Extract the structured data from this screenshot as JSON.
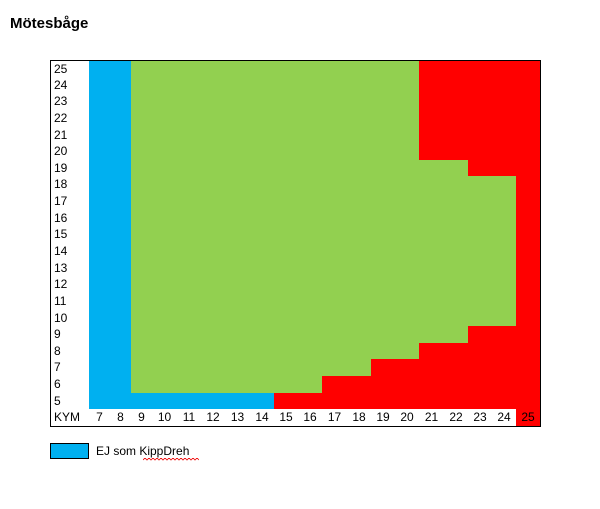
{
  "title": "Mötesbåge",
  "table": {
    "rows": [
      {
        "label": "25",
        "cells": [
          "#00b0f0",
          "#00b0f0",
          "#92d050",
          "#92d050",
          "#92d050",
          "#92d050",
          "#92d050",
          "#92d050",
          "#92d050",
          "#92d050",
          "#92d050",
          "#92d050",
          "#92d050",
          "#92d050",
          "#ff0000",
          "#ff0000",
          "#ff0000",
          "#ff0000",
          "#ff0000"
        ]
      },
      {
        "label": "24",
        "cells": [
          "#00b0f0",
          "#00b0f0",
          "#92d050",
          "#92d050",
          "#92d050",
          "#92d050",
          "#92d050",
          "#92d050",
          "#92d050",
          "#92d050",
          "#92d050",
          "#92d050",
          "#92d050",
          "#92d050",
          "#ff0000",
          "#ff0000",
          "#ff0000",
          "#ff0000",
          "#ff0000"
        ]
      },
      {
        "label": "23",
        "cells": [
          "#00b0f0",
          "#00b0f0",
          "#92d050",
          "#92d050",
          "#92d050",
          "#92d050",
          "#92d050",
          "#92d050",
          "#92d050",
          "#92d050",
          "#92d050",
          "#92d050",
          "#92d050",
          "#92d050",
          "#ff0000",
          "#ff0000",
          "#ff0000",
          "#ff0000",
          "#ff0000"
        ]
      },
      {
        "label": "22",
        "cells": [
          "#00b0f0",
          "#00b0f0",
          "#92d050",
          "#92d050",
          "#92d050",
          "#92d050",
          "#92d050",
          "#92d050",
          "#92d050",
          "#92d050",
          "#92d050",
          "#92d050",
          "#92d050",
          "#92d050",
          "#ff0000",
          "#ff0000",
          "#ff0000",
          "#ff0000",
          "#ff0000"
        ]
      },
      {
        "label": "21",
        "cells": [
          "#00b0f0",
          "#00b0f0",
          "#92d050",
          "#92d050",
          "#92d050",
          "#92d050",
          "#92d050",
          "#92d050",
          "#92d050",
          "#92d050",
          "#92d050",
          "#92d050",
          "#92d050",
          "#92d050",
          "#ff0000",
          "#ff0000",
          "#ff0000",
          "#ff0000",
          "#ff0000"
        ]
      },
      {
        "label": "20",
        "cells": [
          "#00b0f0",
          "#00b0f0",
          "#92d050",
          "#92d050",
          "#92d050",
          "#92d050",
          "#92d050",
          "#92d050",
          "#92d050",
          "#92d050",
          "#92d050",
          "#92d050",
          "#92d050",
          "#92d050",
          "#ff0000",
          "#ff0000",
          "#ff0000",
          "#ff0000",
          "#ff0000"
        ]
      },
      {
        "label": "19",
        "cells": [
          "#00b0f0",
          "#00b0f0",
          "#92d050",
          "#92d050",
          "#92d050",
          "#92d050",
          "#92d050",
          "#92d050",
          "#92d050",
          "#92d050",
          "#92d050",
          "#92d050",
          "#92d050",
          "#92d050",
          "#92d050",
          "#92d050",
          "#ff0000",
          "#ff0000",
          "#ff0000"
        ]
      },
      {
        "label": "18",
        "cells": [
          "#00b0f0",
          "#00b0f0",
          "#92d050",
          "#92d050",
          "#92d050",
          "#92d050",
          "#92d050",
          "#92d050",
          "#92d050",
          "#92d050",
          "#92d050",
          "#92d050",
          "#92d050",
          "#92d050",
          "#92d050",
          "#92d050",
          "#92d050",
          "#92d050",
          "#ff0000"
        ]
      },
      {
        "label": "17",
        "cells": [
          "#00b0f0",
          "#00b0f0",
          "#92d050",
          "#92d050",
          "#92d050",
          "#92d050",
          "#92d050",
          "#92d050",
          "#92d050",
          "#92d050",
          "#92d050",
          "#92d050",
          "#92d050",
          "#92d050",
          "#92d050",
          "#92d050",
          "#92d050",
          "#92d050",
          "#ff0000"
        ]
      },
      {
        "label": "16",
        "cells": [
          "#00b0f0",
          "#00b0f0",
          "#92d050",
          "#92d050",
          "#92d050",
          "#92d050",
          "#92d050",
          "#92d050",
          "#92d050",
          "#92d050",
          "#92d050",
          "#92d050",
          "#92d050",
          "#92d050",
          "#92d050",
          "#92d050",
          "#92d050",
          "#92d050",
          "#ff0000"
        ]
      },
      {
        "label": "15",
        "cells": [
          "#00b0f0",
          "#00b0f0",
          "#92d050",
          "#92d050",
          "#92d050",
          "#92d050",
          "#92d050",
          "#92d050",
          "#92d050",
          "#92d050",
          "#92d050",
          "#92d050",
          "#92d050",
          "#92d050",
          "#92d050",
          "#92d050",
          "#92d050",
          "#92d050",
          "#ff0000"
        ]
      },
      {
        "label": "14",
        "cells": [
          "#00b0f0",
          "#00b0f0",
          "#92d050",
          "#92d050",
          "#92d050",
          "#92d050",
          "#92d050",
          "#92d050",
          "#92d050",
          "#92d050",
          "#92d050",
          "#92d050",
          "#92d050",
          "#92d050",
          "#92d050",
          "#92d050",
          "#92d050",
          "#92d050",
          "#ff0000"
        ]
      },
      {
        "label": "13",
        "cells": [
          "#00b0f0",
          "#00b0f0",
          "#92d050",
          "#92d050",
          "#92d050",
          "#92d050",
          "#92d050",
          "#92d050",
          "#92d050",
          "#92d050",
          "#92d050",
          "#92d050",
          "#92d050",
          "#92d050",
          "#92d050",
          "#92d050",
          "#92d050",
          "#92d050",
          "#ff0000"
        ]
      },
      {
        "label": "12",
        "cells": [
          "#00b0f0",
          "#00b0f0",
          "#92d050",
          "#92d050",
          "#92d050",
          "#92d050",
          "#92d050",
          "#92d050",
          "#92d050",
          "#92d050",
          "#92d050",
          "#92d050",
          "#92d050",
          "#92d050",
          "#92d050",
          "#92d050",
          "#92d050",
          "#92d050",
          "#ff0000"
        ]
      },
      {
        "label": "11",
        "cells": [
          "#00b0f0",
          "#00b0f0",
          "#92d050",
          "#92d050",
          "#92d050",
          "#92d050",
          "#92d050",
          "#92d050",
          "#92d050",
          "#92d050",
          "#92d050",
          "#92d050",
          "#92d050",
          "#92d050",
          "#92d050",
          "#92d050",
          "#92d050",
          "#92d050",
          "#ff0000"
        ]
      },
      {
        "label": "10",
        "cells": [
          "#00b0f0",
          "#00b0f0",
          "#92d050",
          "#92d050",
          "#92d050",
          "#92d050",
          "#92d050",
          "#92d050",
          "#92d050",
          "#92d050",
          "#92d050",
          "#92d050",
          "#92d050",
          "#92d050",
          "#92d050",
          "#92d050",
          "#92d050",
          "#92d050",
          "#ff0000"
        ]
      },
      {
        "label": "9",
        "cells": [
          "#00b0f0",
          "#00b0f0",
          "#92d050",
          "#92d050",
          "#92d050",
          "#92d050",
          "#92d050",
          "#92d050",
          "#92d050",
          "#92d050",
          "#92d050",
          "#92d050",
          "#92d050",
          "#92d050",
          "#92d050",
          "#92d050",
          "#ff0000",
          "#ff0000",
          "#ff0000"
        ]
      },
      {
        "label": "8",
        "cells": [
          "#00b0f0",
          "#00b0f0",
          "#92d050",
          "#92d050",
          "#92d050",
          "#92d050",
          "#92d050",
          "#92d050",
          "#92d050",
          "#92d050",
          "#92d050",
          "#92d050",
          "#92d050",
          "#92d050",
          "#ff0000",
          "#ff0000",
          "#ff0000",
          "#ff0000",
          "#ff0000"
        ]
      },
      {
        "label": "7",
        "cells": [
          "#00b0f0",
          "#00b0f0",
          "#92d050",
          "#92d050",
          "#92d050",
          "#92d050",
          "#92d050",
          "#92d050",
          "#92d050",
          "#92d050",
          "#92d050",
          "#92d050",
          "#ff0000",
          "#ff0000",
          "#ff0000",
          "#ff0000",
          "#ff0000",
          "#ff0000",
          "#ff0000"
        ]
      },
      {
        "label": "6",
        "cells": [
          "#00b0f0",
          "#00b0f0",
          "#92d050",
          "#92d050",
          "#92d050",
          "#92d050",
          "#92d050",
          "#92d050",
          "#92d050",
          "#92d050",
          "#ff0000",
          "#ff0000",
          "#ff0000",
          "#ff0000",
          "#ff0000",
          "#ff0000",
          "#ff0000",
          "#ff0000",
          "#ff0000"
        ]
      },
      {
        "label": "5",
        "cells": [
          "#00b0f0",
          "#00b0f0",
          "#00b0f0",
          "#00b0f0",
          "#00b0f0",
          "#00b0f0",
          "#00b0f0",
          "#00b0f0",
          "#ff0000",
          "#ff0000",
          "#ff0000",
          "#ff0000",
          "#ff0000",
          "#ff0000",
          "#ff0000",
          "#ff0000",
          "#ff0000",
          "#ff0000",
          "#ff0000"
        ]
      }
    ],
    "footer": {
      "label": "KYM",
      "columns": [
        "7",
        "8",
        "9",
        "10",
        "11",
        "12",
        "13",
        "14",
        "15",
        "16",
        "17",
        "18",
        "19",
        "20",
        "21",
        "22",
        "23",
        "24",
        "25"
      ],
      "colors": [
        "#ffffff",
        "#ffffff",
        "#ffffff",
        "#ffffff",
        "#ffffff",
        "#ffffff",
        "#ffffff",
        "#ffffff",
        "#ffffff",
        "#ffffff",
        "#ffffff",
        "#ffffff",
        "#ffffff",
        "#ffffff",
        "#ffffff",
        "#ffffff",
        "#ffffff",
        "#ffffff",
        "#ff0000"
      ]
    }
  },
  "legend": {
    "color": "#00b0f0",
    "label": "EJ som KippDreh"
  }
}
